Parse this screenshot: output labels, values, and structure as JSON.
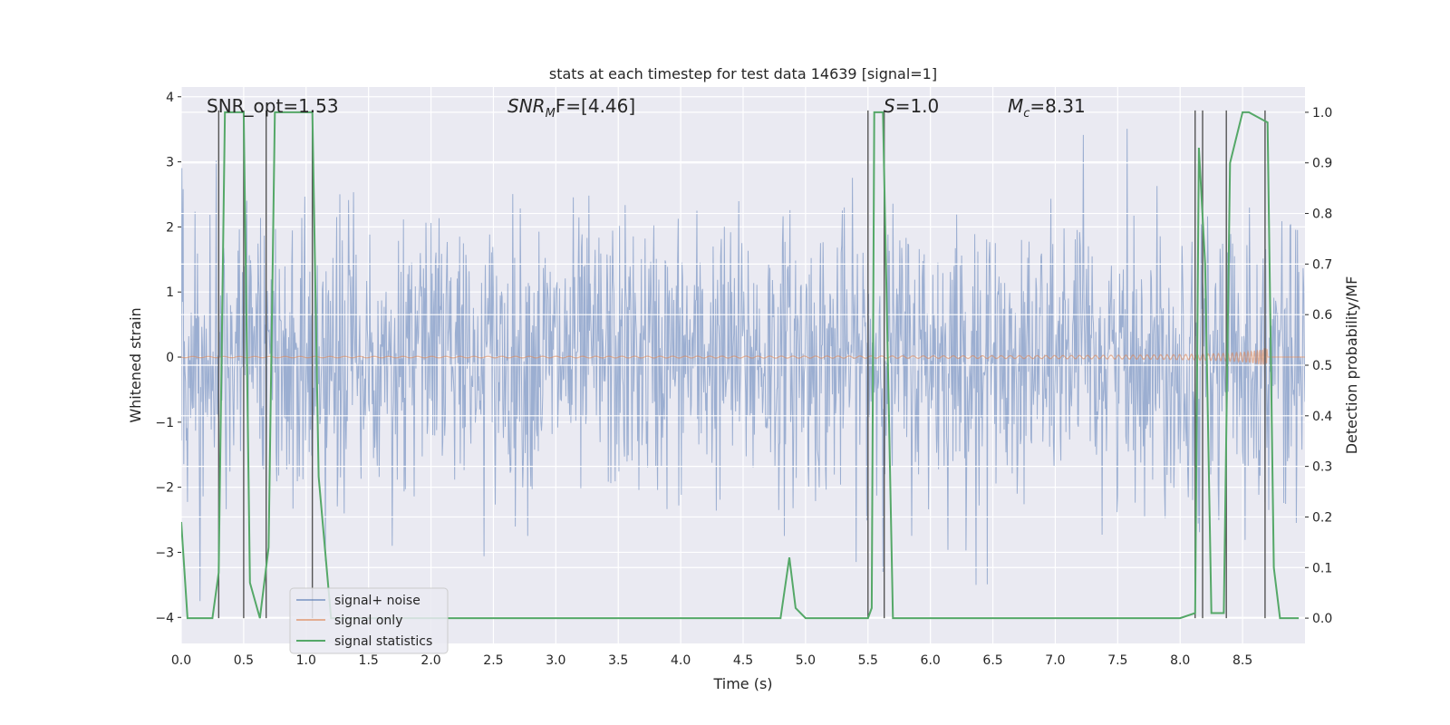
{
  "chart_data": {
    "type": "line",
    "title": "stats at each timestep for test data 14639 [signal=1]",
    "xlabel": "Time (s)",
    "ylabel": "Whitened strain",
    "ylabel_right": "Detection probability/MF",
    "xlim": [
      0.0,
      9.0
    ],
    "ylim": [
      -4.4,
      4.15
    ],
    "ylim_right": [
      -0.05,
      1.05
    ],
    "x_ticks": [
      0.0,
      0.5,
      1.0,
      1.5,
      2.0,
      2.5,
      3.0,
      3.5,
      4.0,
      4.5,
      5.0,
      5.5,
      6.0,
      6.5,
      7.0,
      7.5,
      8.0,
      8.5
    ],
    "x_tick_labels": [
      "0.0",
      "0.5",
      "1.0",
      "1.5",
      "2.0",
      "2.5",
      "3.0",
      "3.5",
      "4.0",
      "4.5",
      "5.0",
      "5.5",
      "6.0",
      "6.5",
      "7.0",
      "7.5",
      "8.0",
      "8.5"
    ],
    "y_ticks": [
      4,
      3,
      2,
      1,
      0,
      -1,
      -2,
      -3,
      -4
    ],
    "y_tick_labels": [
      "4",
      "3",
      "2",
      "1",
      "0",
      "−1",
      "−2",
      "−3",
      "−4"
    ],
    "y_right_ticks": [
      1.0,
      0.9,
      0.8,
      0.7,
      0.6,
      0.5,
      0.4,
      0.3,
      0.2,
      0.1,
      0.0
    ],
    "y_right_tick_labels": [
      "1.0",
      "0.9",
      "0.8",
      "0.7",
      "0.6",
      "0.5",
      "0.4",
      "0.3",
      "0.2",
      "0.1",
      "0.0"
    ],
    "grid": true,
    "legend_position": "lower-left",
    "annotations": [
      {
        "text": "SNR_opt=1.53",
        "x": 0.2
      },
      {
        "text": "SNR_MF=[4.46]",
        "x": 2.6,
        "base": "SNR",
        "sub": "M",
        "rest": "F=[4.46]",
        "italic": true
      },
      {
        "text": "S=1.0",
        "x": 5.6,
        "base": "S",
        "rest": "=1.0",
        "italic": true
      },
      {
        "text": "M_c=8.31",
        "x": 6.6,
        "base": "M",
        "sub": "c",
        "rest": "=8.31",
        "italic": true
      }
    ],
    "series": [
      {
        "name": "signal+ noise",
        "color": "#4c72b0",
        "axis": "left",
        "kind": "noise",
        "typical_range": [
          -2.1,
          2.1
        ],
        "extreme_range": [
          -3.75,
          3.8
        ]
      },
      {
        "name": "signal only",
        "color": "#dd8452",
        "axis": "left",
        "kind": "chirp",
        "merger_time": 8.7,
        "peak_amplitude": 0.18
      },
      {
        "name": "signal statistics",
        "color": "#55a868",
        "axis": "right",
        "x": [
          0.0,
          0.05,
          0.25,
          0.3,
          0.35,
          0.5,
          0.55,
          0.63,
          0.7,
          0.75,
          1.05,
          1.1,
          1.2,
          1.5,
          2.0,
          2.5,
          3.0,
          3.5,
          4.0,
          4.5,
          4.8,
          4.87,
          4.92,
          5.0,
          5.5,
          5.53,
          5.55,
          5.6,
          5.62,
          5.7,
          6.0,
          6.5,
          7.0,
          7.5,
          8.0,
          8.12,
          8.15,
          8.2,
          8.25,
          8.35,
          8.4,
          8.45,
          8.5,
          8.55,
          8.7,
          8.75,
          8.8,
          8.95
        ],
        "y": [
          0.19,
          0.0,
          0.0,
          0.09,
          1.0,
          1.0,
          0.07,
          0.0,
          0.14,
          1.0,
          1.0,
          0.28,
          0.0,
          0.0,
          0.0,
          0.0,
          0.0,
          0.0,
          0.0,
          0.0,
          0.0,
          0.12,
          0.02,
          0.0,
          0.0,
          0.02,
          1.0,
          1.0,
          1.0,
          0.0,
          0.0,
          0.0,
          0.0,
          0.0,
          0.0,
          0.01,
          0.93,
          0.7,
          0.01,
          0.01,
          0.9,
          0.95,
          1.0,
          1.0,
          0.98,
          0.1,
          0.0,
          0.0
        ]
      }
    ],
    "vertical_markers": [
      0.3,
      0.5,
      0.68,
      1.05,
      5.5,
      5.63,
      8.12,
      8.18,
      8.37,
      8.68
    ]
  }
}
